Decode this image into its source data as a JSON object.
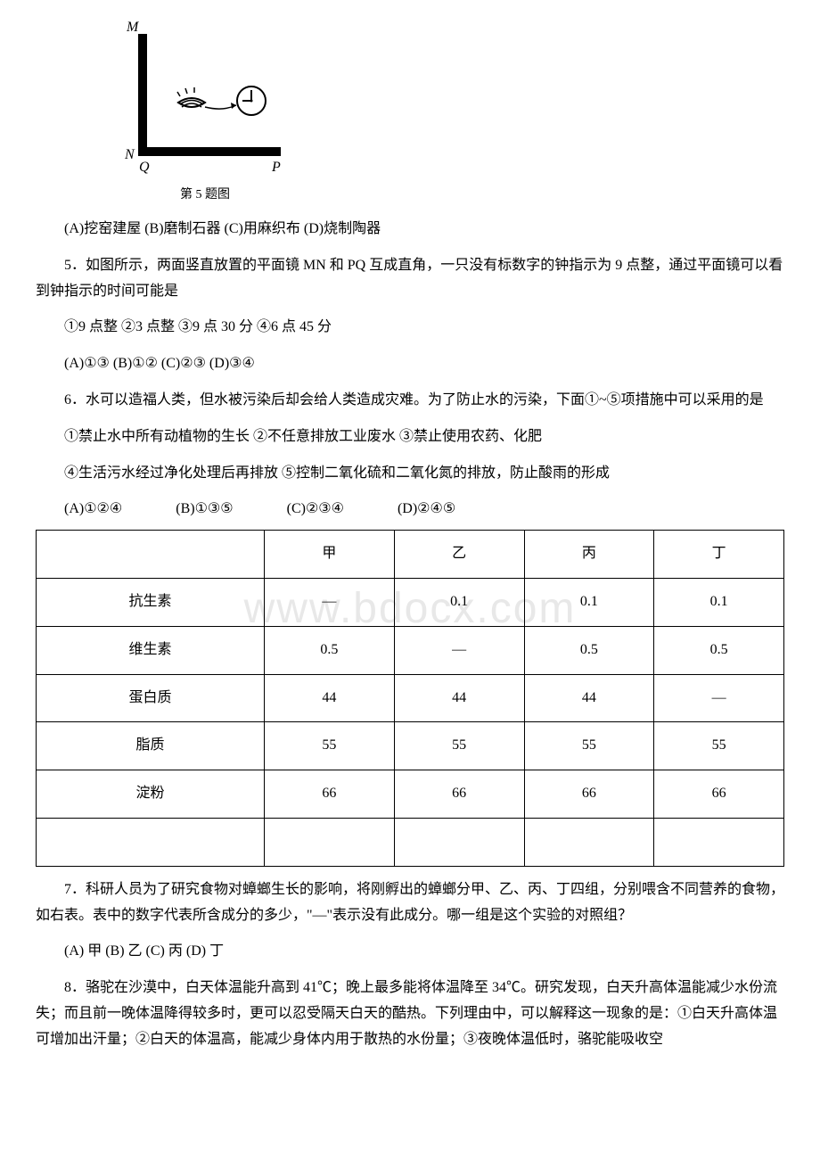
{
  "figure": {
    "caption": "第 5 题图",
    "labels": {
      "M": "M",
      "N": "N",
      "Q": "Q",
      "P": "P"
    },
    "stroke": "#000000",
    "fill": "#000000"
  },
  "watermark": "www.bdocx.com",
  "q4_options": "(A)挖窑建屋 (B)磨制石器 (C)用麻织布 (D)烧制陶器",
  "q5": {
    "stem": "5．如图所示，两面竖直放置的平面镜 MN 和 PQ 互成直角，一只没有标数字的钟指示为 9 点整，通过平面镜可以看到钟指示的时间可能是",
    "choices": "①9 点整 ②3 点整 ③9 点 30 分 ④6 点 45 分",
    "options": "(A)①③ (B)①② (C)②③ (D)③④"
  },
  "q6": {
    "stem": "6．水可以造福人类，但水被污染后却会给人类造成灾难。为了防止水的污染，下面①~⑤项措施中可以采用的是",
    "line1": "①禁止水中所有动植物的生长 ②不任意排放工业废水 ③禁止使用农药、化肥",
    "line2": "④生活污水经过净化处理后再排放 ⑤控制二氧化硫和二氧化氮的排放，防止酸雨的形成",
    "options": [
      "(A)①②④",
      "(B)①③⑤",
      "(C)②③④",
      "(D)②④⑤"
    ]
  },
  "table": {
    "headers": [
      "",
      "甲",
      "乙",
      "丙",
      "丁"
    ],
    "rows": [
      [
        "抗生素",
        "—",
        "0.1",
        "0.1",
        "0.1"
      ],
      [
        "维生素",
        "0.5",
        "—",
        "0.5",
        "0.5"
      ],
      [
        "蛋白质",
        "44",
        "44",
        "44",
        "—"
      ],
      [
        "脂质",
        "55",
        "55",
        "55",
        "55"
      ],
      [
        "淀粉",
        "66",
        "66",
        "66",
        "66"
      ],
      [
        "",
        "",
        "",
        "",
        ""
      ]
    ]
  },
  "q7": {
    "stem": "7．科研人员为了研究食物对蟑螂生长的影响，将刚孵出的蟑螂分甲、乙、丙、丁四组，分别喂含不同营养的食物，如右表。表中的数字代表所含成分的多少，\"—\"表示没有此成分。哪一组是这个实验的对照组？",
    "options": "(A) 甲 (B) 乙 (C) 丙 (D) 丁"
  },
  "q8": {
    "stem": "8．骆驼在沙漠中，白天体温能升高到 41℃；晚上最多能将体温降至 34℃。研究发现，白天升高体温能减少水份流失；而且前一晚体温降得较多时，更可以忍受隔天白天的酷热。下列理由中，可以解释这一现象的是：①白天升高体温可增加出汗量；②白天的体温高，能减少身体内用于散热的水份量；③夜晚体温低时，骆驼能吸收空"
  }
}
